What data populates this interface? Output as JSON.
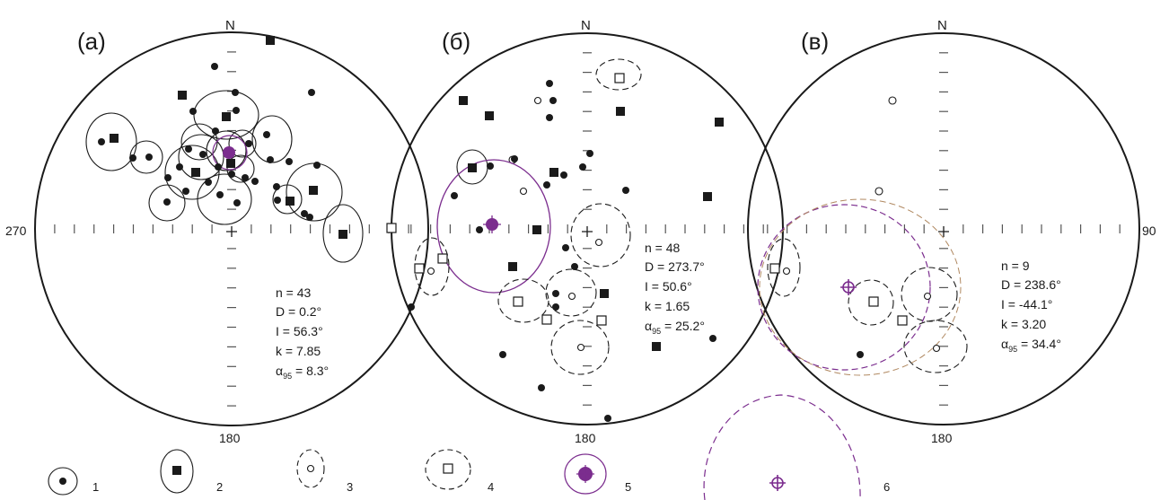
{
  "labels": {
    "north": "N",
    "south": "180",
    "west": "270",
    "east": "90"
  },
  "panels": [
    {
      "label": "(а)",
      "stats": {
        "n": "n = 43",
        "d": "D = 0.2°",
        "i": "I = 56.3°",
        "k": "k = 7.85",
        "a95": "95",
        "a95_value": " = 8.3°"
      }
    },
    {
      "label": "(б)",
      "stats": {
        "n": "n = 48",
        "d": "D = 273.7°",
        "i": "I = 50.6°",
        "k": "k = 1.65",
        "a95": "95",
        "a95_value": " = 25.2°"
      }
    },
    {
      "label": "(в)",
      "stats": {
        "n": "n = 9",
        "d": "D = 238.6°",
        "i": "I = -44.1°",
        "k": "k = 3.20",
        "a95": "95",
        "a95_value": " = 34.4°"
      }
    }
  ],
  "legend": [
    {
      "num": "1"
    },
    {
      "num": "2"
    },
    {
      "num": "3"
    },
    {
      "num": "4"
    },
    {
      "num": "5"
    },
    {
      "num": "6"
    }
  ],
  "colors": {
    "ink": "#1a1a1a",
    "mean": "#7b2d8e"
  },
  "alpha_symbol": "α"
}
